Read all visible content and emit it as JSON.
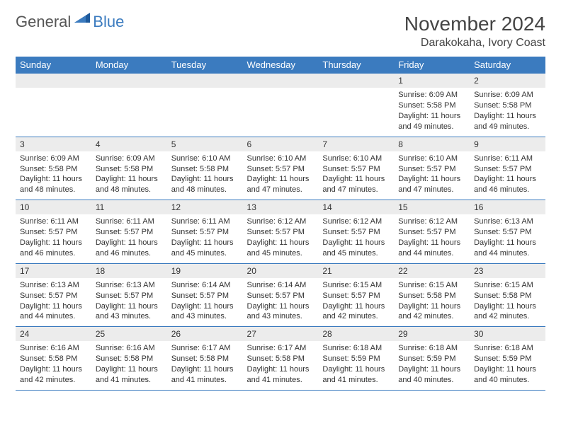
{
  "brand": {
    "name1": "General",
    "name2": "Blue"
  },
  "title": "November 2024",
  "location": "Darakokaha, Ivory Coast",
  "colors": {
    "header_bg": "#3b7bbf",
    "header_text": "#ffffff",
    "daynum_bg": "#ececec",
    "border": "#3b7bbf",
    "text": "#333333",
    "page_bg": "#ffffff"
  },
  "typography": {
    "title_fontsize": 28,
    "location_fontsize": 16,
    "dayheader_fontsize": 13,
    "cell_fontsize": 11
  },
  "day_headers": [
    "Sunday",
    "Monday",
    "Tuesday",
    "Wednesday",
    "Thursday",
    "Friday",
    "Saturday"
  ],
  "weeks": [
    [
      null,
      null,
      null,
      null,
      null,
      {
        "n": "1",
        "sr": "Sunrise: 6:09 AM",
        "ss": "Sunset: 5:58 PM",
        "dl": "Daylight: 11 hours and 49 minutes."
      },
      {
        "n": "2",
        "sr": "Sunrise: 6:09 AM",
        "ss": "Sunset: 5:58 PM",
        "dl": "Daylight: 11 hours and 49 minutes."
      }
    ],
    [
      {
        "n": "3",
        "sr": "Sunrise: 6:09 AM",
        "ss": "Sunset: 5:58 PM",
        "dl": "Daylight: 11 hours and 48 minutes."
      },
      {
        "n": "4",
        "sr": "Sunrise: 6:09 AM",
        "ss": "Sunset: 5:58 PM",
        "dl": "Daylight: 11 hours and 48 minutes."
      },
      {
        "n": "5",
        "sr": "Sunrise: 6:10 AM",
        "ss": "Sunset: 5:58 PM",
        "dl": "Daylight: 11 hours and 48 minutes."
      },
      {
        "n": "6",
        "sr": "Sunrise: 6:10 AM",
        "ss": "Sunset: 5:57 PM",
        "dl": "Daylight: 11 hours and 47 minutes."
      },
      {
        "n": "7",
        "sr": "Sunrise: 6:10 AM",
        "ss": "Sunset: 5:57 PM",
        "dl": "Daylight: 11 hours and 47 minutes."
      },
      {
        "n": "8",
        "sr": "Sunrise: 6:10 AM",
        "ss": "Sunset: 5:57 PM",
        "dl": "Daylight: 11 hours and 47 minutes."
      },
      {
        "n": "9",
        "sr": "Sunrise: 6:11 AM",
        "ss": "Sunset: 5:57 PM",
        "dl": "Daylight: 11 hours and 46 minutes."
      }
    ],
    [
      {
        "n": "10",
        "sr": "Sunrise: 6:11 AM",
        "ss": "Sunset: 5:57 PM",
        "dl": "Daylight: 11 hours and 46 minutes."
      },
      {
        "n": "11",
        "sr": "Sunrise: 6:11 AM",
        "ss": "Sunset: 5:57 PM",
        "dl": "Daylight: 11 hours and 46 minutes."
      },
      {
        "n": "12",
        "sr": "Sunrise: 6:11 AM",
        "ss": "Sunset: 5:57 PM",
        "dl": "Daylight: 11 hours and 45 minutes."
      },
      {
        "n": "13",
        "sr": "Sunrise: 6:12 AM",
        "ss": "Sunset: 5:57 PM",
        "dl": "Daylight: 11 hours and 45 minutes."
      },
      {
        "n": "14",
        "sr": "Sunrise: 6:12 AM",
        "ss": "Sunset: 5:57 PM",
        "dl": "Daylight: 11 hours and 45 minutes."
      },
      {
        "n": "15",
        "sr": "Sunrise: 6:12 AM",
        "ss": "Sunset: 5:57 PM",
        "dl": "Daylight: 11 hours and 44 minutes."
      },
      {
        "n": "16",
        "sr": "Sunrise: 6:13 AM",
        "ss": "Sunset: 5:57 PM",
        "dl": "Daylight: 11 hours and 44 minutes."
      }
    ],
    [
      {
        "n": "17",
        "sr": "Sunrise: 6:13 AM",
        "ss": "Sunset: 5:57 PM",
        "dl": "Daylight: 11 hours and 44 minutes."
      },
      {
        "n": "18",
        "sr": "Sunrise: 6:13 AM",
        "ss": "Sunset: 5:57 PM",
        "dl": "Daylight: 11 hours and 43 minutes."
      },
      {
        "n": "19",
        "sr": "Sunrise: 6:14 AM",
        "ss": "Sunset: 5:57 PM",
        "dl": "Daylight: 11 hours and 43 minutes."
      },
      {
        "n": "20",
        "sr": "Sunrise: 6:14 AM",
        "ss": "Sunset: 5:57 PM",
        "dl": "Daylight: 11 hours and 43 minutes."
      },
      {
        "n": "21",
        "sr": "Sunrise: 6:15 AM",
        "ss": "Sunset: 5:57 PM",
        "dl": "Daylight: 11 hours and 42 minutes."
      },
      {
        "n": "22",
        "sr": "Sunrise: 6:15 AM",
        "ss": "Sunset: 5:58 PM",
        "dl": "Daylight: 11 hours and 42 minutes."
      },
      {
        "n": "23",
        "sr": "Sunrise: 6:15 AM",
        "ss": "Sunset: 5:58 PM",
        "dl": "Daylight: 11 hours and 42 minutes."
      }
    ],
    [
      {
        "n": "24",
        "sr": "Sunrise: 6:16 AM",
        "ss": "Sunset: 5:58 PM",
        "dl": "Daylight: 11 hours and 42 minutes."
      },
      {
        "n": "25",
        "sr": "Sunrise: 6:16 AM",
        "ss": "Sunset: 5:58 PM",
        "dl": "Daylight: 11 hours and 41 minutes."
      },
      {
        "n": "26",
        "sr": "Sunrise: 6:17 AM",
        "ss": "Sunset: 5:58 PM",
        "dl": "Daylight: 11 hours and 41 minutes."
      },
      {
        "n": "27",
        "sr": "Sunrise: 6:17 AM",
        "ss": "Sunset: 5:58 PM",
        "dl": "Daylight: 11 hours and 41 minutes."
      },
      {
        "n": "28",
        "sr": "Sunrise: 6:18 AM",
        "ss": "Sunset: 5:59 PM",
        "dl": "Daylight: 11 hours and 41 minutes."
      },
      {
        "n": "29",
        "sr": "Sunrise: 6:18 AM",
        "ss": "Sunset: 5:59 PM",
        "dl": "Daylight: 11 hours and 40 minutes."
      },
      {
        "n": "30",
        "sr": "Sunrise: 6:18 AM",
        "ss": "Sunset: 5:59 PM",
        "dl": "Daylight: 11 hours and 40 minutes."
      }
    ]
  ]
}
